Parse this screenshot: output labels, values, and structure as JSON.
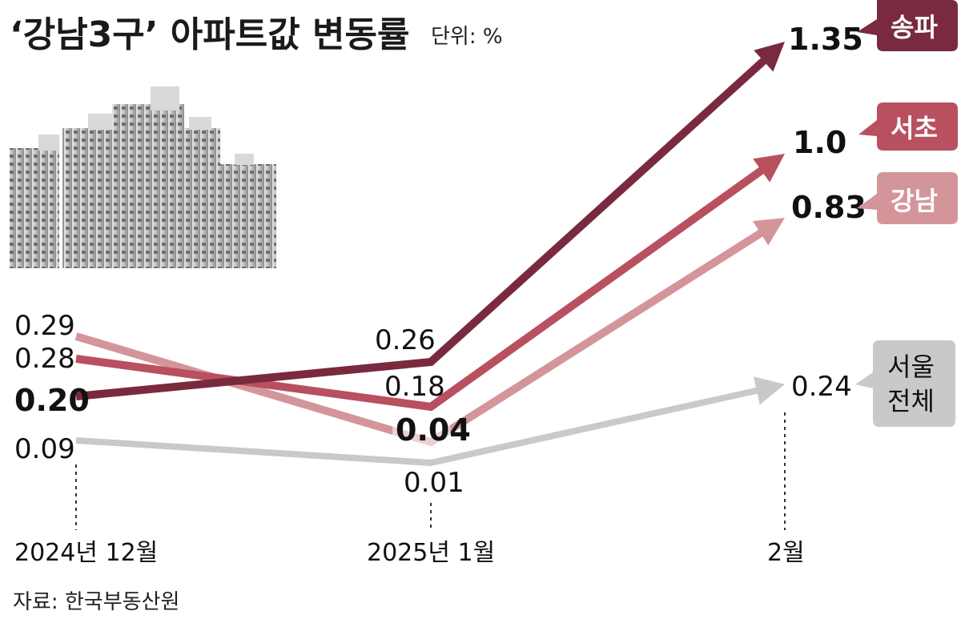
{
  "title": "‘강남3구’ 아파트값 변동률",
  "unit": "단위: %",
  "source": "자료: 한국부동산원",
  "colors": {
    "songpa": "#7a2a3e",
    "seocho": "#b8505f",
    "gangnam": "#d4959a",
    "seoul": "#c9c9c9",
    "seoul_tag_bg": "#c9c9c9"
  },
  "chart_data": {
    "type": "line",
    "categories": [
      "2024년 12월",
      "2025년 1월",
      "2월"
    ],
    "series": [
      {
        "name": "송파",
        "values": [
          0.2,
          0.26,
          1.35
        ],
        "labels": [
          "0.20",
          "0.26",
          "1.35"
        ]
      },
      {
        "name": "서초",
        "values": [
          0.28,
          0.18,
          1.0
        ],
        "labels": [
          "0.28",
          "0.18",
          "1.0"
        ]
      },
      {
        "name": "강남",
        "values": [
          0.29,
          0.04,
          0.83
        ],
        "labels": [
          "0.29",
          "0.04",
          "0.83"
        ]
      },
      {
        "name": "서울 전체",
        "values": [
          0.09,
          0.01,
          0.24
        ],
        "labels": [
          "0.09",
          "0.01",
          "0.24"
        ]
      }
    ],
    "title": "‘강남3구’ 아파트값 변동률",
    "ylabel": "단위: %",
    "xlabel": "",
    "grid": false
  },
  "tags": {
    "songpa": "송파",
    "seocho": "서초",
    "gangnam": "강남",
    "seoul_line1": "서울",
    "seoul_line2": "전체"
  }
}
